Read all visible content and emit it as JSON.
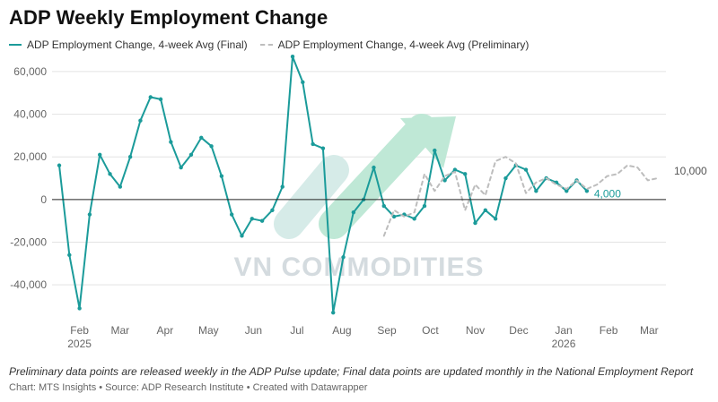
{
  "title": "ADP Weekly Employment Change",
  "legend": {
    "final": "ADP Employment Change, 4-week Avg (Final)",
    "prelim": "ADP Employment Change, 4-week Avg (Preliminary)"
  },
  "footnote": "Preliminary data points are released weekly in the ADP Pulse update; Final data points are updated monthly in the National Employment Report",
  "credit": "Chart: MTS Insights • Source: ADP Research Institute • Created with Datawrapper",
  "watermark": "VN COMMODITIES",
  "colors": {
    "final": "#1b9b9a",
    "prelim": "#bdbdbd",
    "grid": "#e3e3e3",
    "zero": "#222222",
    "watermark_text": "#d4dbdf",
    "watermark_teal": "#d6ebe8",
    "watermark_green": "#bfe8d6"
  },
  "chart_data": {
    "type": "line",
    "x_unit": "week",
    "ylim": [
      -50000,
      65000
    ],
    "y_ticks": [
      {
        "value": 60000,
        "label": "60,000"
      },
      {
        "value": 40000,
        "label": "40,000"
      },
      {
        "value": 20000,
        "label": "20,000"
      },
      {
        "value": 0,
        "label": "0"
      },
      {
        "value": -20000,
        "label": "-20,000"
      },
      {
        "value": -40000,
        "label": "-40,000"
      }
    ],
    "x_ticks": [
      {
        "label": "Feb",
        "sub": "2025",
        "date": "2025-02-01"
      },
      {
        "label": "Mar",
        "sub": "",
        "date": "2025-03-01"
      },
      {
        "label": "Apr",
        "sub": "",
        "date": "2025-04-01"
      },
      {
        "label": "May",
        "sub": "",
        "date": "2025-05-01"
      },
      {
        "label": "Jun",
        "sub": "",
        "date": "2025-06-01"
      },
      {
        "label": "Jul",
        "sub": "",
        "date": "2025-07-01"
      },
      {
        "label": "Aug",
        "sub": "",
        "date": "2025-08-01"
      },
      {
        "label": "Sep",
        "sub": "",
        "date": "2025-09-01"
      },
      {
        "label": "Oct",
        "sub": "",
        "date": "2025-10-01"
      },
      {
        "label": "Nov",
        "sub": "",
        "date": "2025-11-01"
      },
      {
        "label": "Dec",
        "sub": "",
        "date": "2025-12-01"
      },
      {
        "label": "Jan",
        "sub": "2026",
        "date": "2026-01-01"
      },
      {
        "label": "Feb",
        "sub": "",
        "date": "2026-02-01"
      },
      {
        "label": "Mar",
        "sub": "",
        "date": "2026-03-01"
      }
    ],
    "series": [
      {
        "name": "ADP Employment Change, 4-week Avg (Final)",
        "style": "solid",
        "end_label": "4,000",
        "points": [
          [
            "2025-01-18",
            16000
          ],
          [
            "2025-01-25",
            -26000
          ],
          [
            "2025-02-01",
            -51000
          ],
          [
            "2025-02-08",
            -7000
          ],
          [
            "2025-02-15",
            21000
          ],
          [
            "2025-02-22",
            12000
          ],
          [
            "2025-03-01",
            6000
          ],
          [
            "2025-03-08",
            20000
          ],
          [
            "2025-03-15",
            37000
          ],
          [
            "2025-03-22",
            48000
          ],
          [
            "2025-03-29",
            47000
          ],
          [
            "2025-04-05",
            27000
          ],
          [
            "2025-04-12",
            15000
          ],
          [
            "2025-04-19",
            21000
          ],
          [
            "2025-04-26",
            29000
          ],
          [
            "2025-05-03",
            25000
          ],
          [
            "2025-05-10",
            11000
          ],
          [
            "2025-05-17",
            -7000
          ],
          [
            "2025-05-24",
            -17000
          ],
          [
            "2025-05-31",
            -9000
          ],
          [
            "2025-06-07",
            -10000
          ],
          [
            "2025-06-14",
            -5000
          ],
          [
            "2025-06-21",
            6000
          ],
          [
            "2025-06-28",
            67000
          ],
          [
            "2025-07-05",
            55000
          ],
          [
            "2025-07-12",
            26000
          ],
          [
            "2025-07-19",
            24000
          ],
          [
            "2025-07-26",
            -53000
          ],
          [
            "2025-08-02",
            -27000
          ],
          [
            "2025-08-09",
            -6000
          ],
          [
            "2025-08-16",
            0
          ],
          [
            "2025-08-23",
            15000
          ],
          [
            "2025-08-30",
            -3000
          ],
          [
            "2025-09-06",
            -8000
          ],
          [
            "2025-09-13",
            -7000
          ],
          [
            "2025-09-20",
            -9000
          ],
          [
            "2025-09-27",
            -3000
          ],
          [
            "2025-10-04",
            23000
          ],
          [
            "2025-10-11",
            9000
          ],
          [
            "2025-10-18",
            14000
          ],
          [
            "2025-10-25",
            12000
          ],
          [
            "2025-11-01",
            -11000
          ],
          [
            "2025-11-08",
            -5000
          ],
          [
            "2025-11-15",
            -9000
          ],
          [
            "2025-11-22",
            10000
          ],
          [
            "2025-11-29",
            16000
          ],
          [
            "2025-12-06",
            14000
          ],
          [
            "2025-12-13",
            4000
          ],
          [
            "2025-12-20",
            10000
          ],
          [
            "2025-12-27",
            8000
          ],
          [
            "2026-01-03",
            4000
          ],
          [
            "2026-01-10",
            9000
          ],
          [
            "2026-01-17",
            4000
          ]
        ]
      },
      {
        "name": "ADP Employment Change, 4-week Avg (Preliminary)",
        "style": "dashed",
        "end_label": "10,000",
        "points": [
          [
            "2025-08-30",
            -17000
          ],
          [
            "2025-09-06",
            -5000
          ],
          [
            "2025-09-13",
            -8000
          ],
          [
            "2025-09-20",
            -6000
          ],
          [
            "2025-09-27",
            12000
          ],
          [
            "2025-10-04",
            4000
          ],
          [
            "2025-10-11",
            11000
          ],
          [
            "2025-10-18",
            13000
          ],
          [
            "2025-10-25",
            -5000
          ],
          [
            "2025-11-01",
            7000
          ],
          [
            "2025-11-08",
            2000
          ],
          [
            "2025-11-15",
            18000
          ],
          [
            "2025-11-22",
            20000
          ],
          [
            "2025-11-29",
            17000
          ],
          [
            "2025-12-06",
            3000
          ],
          [
            "2025-12-13",
            8000
          ],
          [
            "2025-12-20",
            10000
          ],
          [
            "2025-12-27",
            7000
          ],
          [
            "2026-01-03",
            5000
          ],
          [
            "2026-01-10",
            9000
          ],
          [
            "2026-01-17",
            5000
          ],
          [
            "2026-01-24",
            7000
          ],
          [
            "2026-01-31",
            11000
          ],
          [
            "2026-02-07",
            12000
          ],
          [
            "2026-02-14",
            16000
          ],
          [
            "2026-02-21",
            15000
          ],
          [
            "2026-02-28",
            9000
          ],
          [
            "2026-03-07",
            10000
          ]
        ]
      }
    ]
  }
}
